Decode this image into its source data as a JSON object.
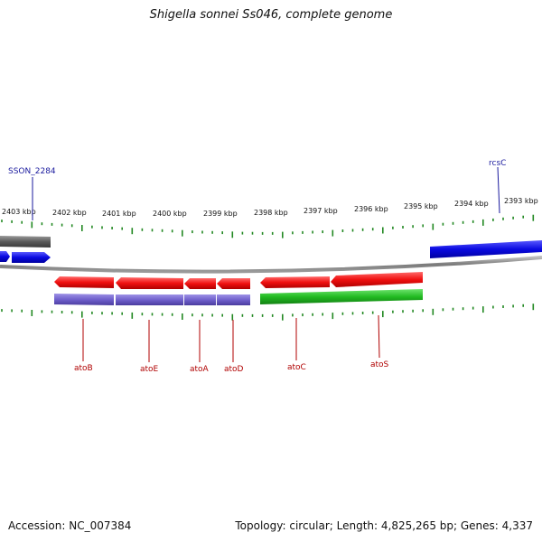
{
  "title": "Shigella sonnei Ss046, complete genome",
  "scale_ticks": [
    {
      "label": "2403 kbp"
    },
    {
      "label": "2402 kbp"
    },
    {
      "label": "2401 kbp"
    },
    {
      "label": "2400 kbp"
    },
    {
      "label": "2399 kbp"
    },
    {
      "label": "2398 kbp"
    },
    {
      "label": "2397 kbp"
    },
    {
      "label": "2396 kbp"
    },
    {
      "label": "2395 kbp"
    },
    {
      "label": "2394 kbp"
    },
    {
      "label": "2393 kbp"
    }
  ],
  "gene_labels_top": [
    "SSON_2284",
    "rcsC"
  ],
  "gene_labels_bottom": [
    "atoB",
    "atoE",
    "atoA",
    "atoD",
    "atoC",
    "atoS"
  ],
  "colors": {
    "forward_gene": "#1010ee",
    "reverse_gene": "#ee1010",
    "cog_purple": "#7060cc",
    "cog_green": "#22bb22",
    "cog_gray": "#666666",
    "backbone": "#888888",
    "tick_green": "#228822",
    "label_blue": "#1a1a9e",
    "label_red": "#b00000"
  },
  "footer": {
    "accession": "Accession: NC_007384",
    "summary": "Topology: circular; Length: 4,825,265 bp; Genes: 4,337"
  }
}
